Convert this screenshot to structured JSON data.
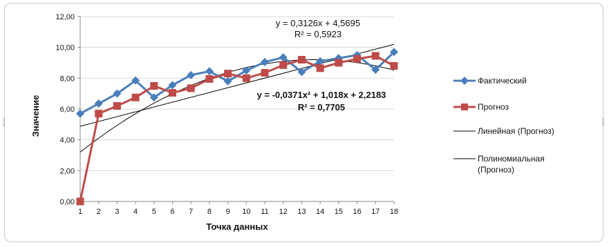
{
  "chart_data": {
    "type": "line",
    "xlabel": "Точка данных",
    "ylabel": "Значение",
    "x": [
      1,
      2,
      3,
      4,
      5,
      6,
      7,
      8,
      9,
      10,
      11,
      12,
      13,
      14,
      15,
      16,
      17,
      18
    ],
    "x_tick_labels": [
      "1",
      "2",
      "3",
      "4",
      "5",
      "6",
      "7",
      "8",
      "9",
      "10",
      "11",
      "12",
      "13",
      "14",
      "15",
      "16",
      "17",
      "18"
    ],
    "ylim": [
      0,
      12
    ],
    "y_tick_labels": [
      "0,00",
      "2,00",
      "4,00",
      "6,00",
      "8,00",
      "10,00",
      "12,00"
    ],
    "y_ticks": [
      0,
      2,
      4,
      6,
      8,
      10,
      12
    ],
    "grid": "horizontal",
    "legend_position": "right",
    "series": [
      {
        "name": "Фактический",
        "color": "#4a7ebb",
        "marker": "diamond",
        "values": [
          5.7,
          6.35,
          7.0,
          7.85,
          6.75,
          7.55,
          8.2,
          8.45,
          7.8,
          8.5,
          9.05,
          9.35,
          8.4,
          9.1,
          9.3,
          9.5,
          8.55,
          9.7
        ]
      },
      {
        "name": "Прогноз",
        "color": "#be4b48",
        "marker": "square",
        "values": [
          0.0,
          5.7,
          6.2,
          6.75,
          7.5,
          7.05,
          7.35,
          7.95,
          8.3,
          8.0,
          8.35,
          8.85,
          9.2,
          8.65,
          9.0,
          9.25,
          9.45,
          8.8
        ]
      }
    ],
    "trendlines": [
      {
        "name": "Линейная (Прогноз)",
        "kind": "linear",
        "color": "#000000",
        "coefficients": {
          "slope": 0.3126,
          "intercept": 4.5695
        },
        "equation": "y = 0,3126x + 4,5695",
        "r2": "R² = 0,5923"
      },
      {
        "name_lines": [
          "Полиномиальная",
          "(Прогноз)"
        ],
        "kind": "polynomial",
        "color": "#000000",
        "coefficients": {
          "a": -0.0371,
          "b": 1.018,
          "c": 2.2183
        },
        "equation": "y = -0,0371x² + 1,018x + 2,2183",
        "r2": "R² = 0,7705"
      }
    ]
  }
}
